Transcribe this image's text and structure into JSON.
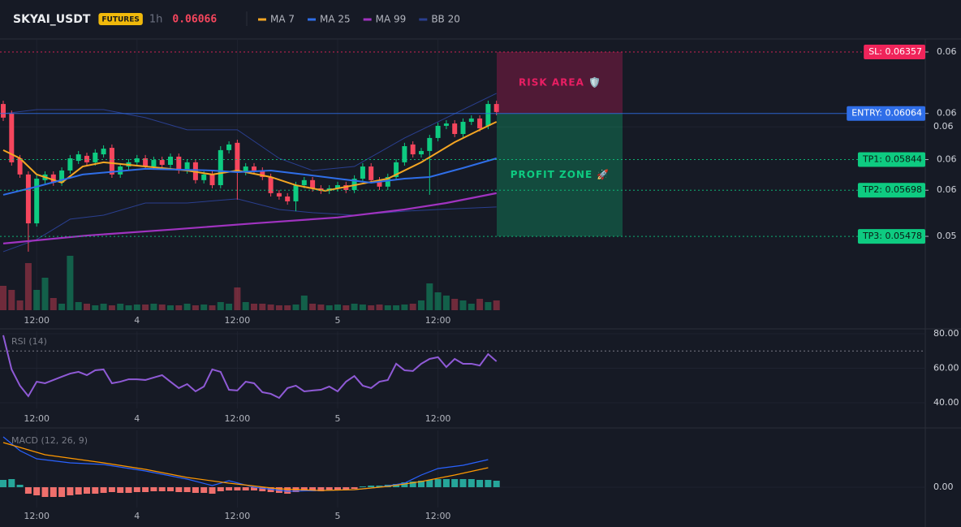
{
  "chart_data": [
    {
      "type": "candlestick",
      "title": "SKYAI_USDT",
      "badge": "FUTURES",
      "interval": "1h",
      "last_price": 0.06066,
      "last_price_color": "#f6465d",
      "categories": [
        null,
        null,
        null,
        null,
        "12:00",
        null,
        null,
        null,
        null,
        null,
        null,
        null,
        null,
        null,
        null,
        null,
        "4",
        null,
        null,
        null,
        null,
        null,
        null,
        null,
        null,
        null,
        null,
        null,
        "12:00",
        null,
        null,
        null,
        null,
        null,
        null,
        null,
        null,
        null,
        null,
        null,
        "5",
        null,
        null,
        null,
        null,
        null,
        null,
        null,
        null,
        null,
        null,
        null,
        "12:00",
        null,
        null,
        null,
        null,
        null,
        null,
        null
      ],
      "open": [
        0.06109,
        0.06063,
        0.0585,
        0.05773,
        0.0554,
        0.05746,
        0.05773,
        0.05734,
        0.05792,
        0.05838,
        0.05862,
        0.05831,
        0.05869,
        0.059,
        0.05773,
        0.05811,
        0.05831,
        0.0585,
        0.05811,
        0.05842,
        0.05819,
        0.05858,
        0.05792,
        0.05831,
        0.05746,
        0.05773,
        0.05722,
        0.05889,
        0.05924,
        0.05784,
        0.05811,
        0.05792,
        0.05761,
        0.05684,
        0.05668,
        0.05645,
        0.05722,
        0.05746,
        0.05707,
        0.05695,
        0.05707,
        0.05722,
        0.05699,
        0.05753,
        0.05811,
        0.05746,
        0.05715,
        0.05761,
        0.05831,
        0.05916,
        0.05869,
        0.05885,
        0.05947,
        0.06005,
        0.06016,
        0.05966,
        0.06024,
        0.0604,
        0.06005,
        0.06109
      ],
      "high": [
        0.06125,
        0.06078,
        0.05866,
        0.05788,
        0.05769,
        0.05788,
        0.05788,
        0.05807,
        0.05866,
        0.05885,
        0.05877,
        0.05893,
        0.05912,
        0.05916,
        0.05827,
        0.05846,
        0.05866,
        0.05866,
        0.05858,
        0.05858,
        0.05873,
        0.05873,
        0.05846,
        0.05846,
        0.05788,
        0.05788,
        0.05908,
        0.05931,
        0.05939,
        0.05827,
        0.05827,
        0.05807,
        0.05777,
        0.05699,
        0.05684,
        0.05738,
        0.05761,
        0.05761,
        0.05722,
        0.05722,
        0.05738,
        0.05738,
        0.05769,
        0.05827,
        0.05827,
        0.05761,
        0.05777,
        0.05846,
        0.05924,
        0.05931,
        0.059,
        0.05962,
        0.0602,
        0.06032,
        0.06032,
        0.0604,
        0.06055,
        0.06055,
        0.06125,
        0.06125
      ],
      "low": [
        0.06028,
        0.05815,
        0.05757,
        0.05405,
        0.05525,
        0.0573,
        0.05719,
        0.05719,
        0.05777,
        0.05823,
        0.05815,
        0.05815,
        0.05854,
        0.05757,
        0.05757,
        0.05796,
        0.05815,
        0.05796,
        0.05796,
        0.05804,
        0.05804,
        0.05777,
        0.05777,
        0.0573,
        0.0573,
        0.05707,
        0.05707,
        0.05873,
        0.05653,
        0.05769,
        0.05777,
        0.05746,
        0.05668,
        0.05653,
        0.05629,
        0.05598,
        0.05707,
        0.05691,
        0.0568,
        0.0568,
        0.05691,
        0.05684,
        0.05684,
        0.05738,
        0.0573,
        0.05699,
        0.05699,
        0.05746,
        0.05815,
        0.05854,
        0.05854,
        0.05676,
        0.05931,
        0.05989,
        0.05951,
        0.05951,
        0.06009,
        0.05978,
        0.05989,
        0.06055
      ],
      "close": [
        0.06044,
        0.05831,
        0.05773,
        0.0554,
        0.05753,
        0.05773,
        0.05734,
        0.05792,
        0.0585,
        0.05869,
        0.05831,
        0.05877,
        0.05896,
        0.05773,
        0.05811,
        0.05831,
        0.0585,
        0.05811,
        0.05842,
        0.05819,
        0.05858,
        0.05792,
        0.05831,
        0.05746,
        0.05773,
        0.05722,
        0.05889,
        0.05916,
        0.05784,
        0.05811,
        0.05792,
        0.05761,
        0.05684,
        0.05668,
        0.05645,
        0.05722,
        0.05746,
        0.05707,
        0.05695,
        0.05707,
        0.05722,
        0.05699,
        0.05753,
        0.05811,
        0.05746,
        0.05715,
        0.05761,
        0.05831,
        0.05908,
        0.05869,
        0.05885,
        0.05947,
        0.06005,
        0.06016,
        0.05966,
        0.06024,
        0.0604,
        0.05993,
        0.06109,
        0.06071
      ],
      "up_color": "#0ecb81",
      "down_color": "#f6465d",
      "ylim": [
        0.05126,
        0.06419
      ],
      "yticks": [
        0.06
      ],
      "volume": {
        "values": [
          30,
          25,
          12,
          58,
          25,
          40,
          15,
          8,
          67,
          10,
          8,
          6,
          8,
          6,
          8,
          6,
          7,
          7,
          8,
          7,
          6,
          6,
          8,
          6,
          7,
          6,
          10,
          8,
          28,
          10,
          8,
          8,
          7,
          6,
          6,
          7,
          18,
          8,
          7,
          6,
          7,
          6,
          8,
          7,
          6,
          7,
          6,
          6,
          7,
          8,
          12,
          33,
          22,
          18,
          14,
          12,
          8,
          14,
          10,
          12
        ],
        "ylim": [
          0,
          100
        ]
      },
      "lines": [
        {
          "name": "MA 7",
          "color": "#f5a623",
          "x": [
            0,
            2,
            4,
            7,
            9.5,
            12,
            17,
            22,
            25,
            28,
            32,
            35,
            38.5,
            42,
            46,
            50,
            54,
            57,
            59
          ],
          "values": [
            0.05889,
            0.0585,
            0.05773,
            0.05734,
            0.05811,
            0.05831,
            0.05811,
            0.05792,
            0.05773,
            0.05792,
            0.05761,
            0.05722,
            0.05695,
            0.05722,
            0.05753,
            0.05831,
            0.05927,
            0.05986,
            0.06024
          ]
        },
        {
          "name": "MA 25",
          "color": "#2f6ee8",
          "x": [
            0,
            4,
            9.5,
            17,
            25,
            28,
            32,
            36,
            40,
            44,
            48,
            51,
            55,
            59
          ],
          "values": [
            0.05676,
            0.05715,
            0.05773,
            0.058,
            0.05792,
            0.05784,
            0.05792,
            0.05773,
            0.05753,
            0.05734,
            0.05753,
            0.05761,
            0.05804,
            0.0585
          ]
        },
        {
          "name": "MA 99",
          "color": "#a033c0",
          "x": [
            0,
            10,
            20,
            30,
            40,
            48,
            53,
            59
          ],
          "values": [
            0.05444,
            0.05482,
            0.0551,
            0.0554,
            0.05568,
            0.05606,
            0.05637,
            0.05684
          ]
        }
      ],
      "bands": {
        "name": "BB 20",
        "color": "#2a3f8f",
        "x": [
          0,
          4,
          8,
          12,
          17,
          22,
          28,
          33,
          37,
          42,
          48,
          52,
          59
        ],
        "upper": [
          0.06063,
          0.06082,
          0.06082,
          0.06082,
          0.06044,
          0.05986,
          0.05986,
          0.0585,
          0.05792,
          0.05811,
          0.05947,
          0.06024,
          0.0616
        ],
        "lower": [
          0.05405,
          0.05463,
          0.0556,
          0.05579,
          0.05637,
          0.05637,
          0.05657,
          0.05606,
          0.05591,
          0.05579,
          0.05598,
          0.05606,
          0.05618
        ]
      },
      "levels": [
        {
          "label": "SL: 0.06357",
          "value": 0.06357,
          "axis_label": "0.06",
          "color": "#f0245a",
          "text_color": "#ffffff",
          "style": "dotted"
        },
        {
          "label": "ENTRY: 0.06064",
          "value": 0.06064,
          "axis_label": "0.06",
          "color": "#2f6ee8",
          "text_color": "#ffffff",
          "style": "solid"
        },
        {
          "label": "TP1: 0.05844",
          "value": 0.05844,
          "axis_label": "0.06",
          "color": "#0ecb81",
          "text_color": "#0b1a14",
          "style": "dotted"
        },
        {
          "label": "TP2: 0.05698",
          "value": 0.05698,
          "axis_label": "0.06",
          "color": "#0ecb81",
          "text_color": "#0b1a14",
          "style": "dotted"
        },
        {
          "label": "TP3: 0.05478",
          "value": 0.05478,
          "axis_label": "0.05",
          "color": "#0ecb81",
          "text_color": "#0b1a14",
          "style": "dotted"
        }
      ],
      "zones": [
        {
          "label": "RISK AREA 🛡️",
          "from": 0.06357,
          "to": 0.06064,
          "color": "#e91e63"
        },
        {
          "label": "PROFIT ZONE 🚀",
          "from": 0.06064,
          "to": 0.05478,
          "color": "#0ecb81"
        }
      ]
    },
    {
      "type": "line",
      "title": "RSI (14)",
      "color": "#8f5ad6",
      "values": [
        79.1,
        59.3,
        49.9,
        43.8,
        52.2,
        51.3,
        53.2,
        55.1,
        56.9,
        57.9,
        56.0,
        58.8,
        59.3,
        51.3,
        52.2,
        53.6,
        53.6,
        53.2,
        54.6,
        56.0,
        52.2,
        48.5,
        50.8,
        46.6,
        49.4,
        59.3,
        57.9,
        47.5,
        47.1,
        52.2,
        51.3,
        46.1,
        45.2,
        42.8,
        48.5,
        49.9,
        46.6,
        47.1,
        47.5,
        49.4,
        46.6,
        52.2,
        55.5,
        49.9,
        48.5,
        52.2,
        53.2,
        62.6,
        58.8,
        58.4,
        62.6,
        65.4,
        66.4,
        60.7,
        65.4,
        62.6,
        62.6,
        61.6,
        68.2,
        64.0
      ],
      "levels": [
        70
      ],
      "ylim": [
        36.7,
        81.4
      ],
      "yticks": [
        {
          "value": 80,
          "label": "80.00"
        },
        {
          "value": 60,
          "label": "60.00"
        },
        {
          "value": 40,
          "label": "40.00"
        }
      ]
    },
    {
      "type": "macd",
      "title": "MACD (12, 26, 9)",
      "histogram": [
        9e-05,
        0.0001,
        3e-05,
        -8e-05,
        -0.0001,
        -0.00012,
        -0.00012,
        -0.00012,
        -0.0001,
        -9e-05,
        -8e-05,
        -8e-05,
        -7e-05,
        -6e-05,
        -7e-05,
        -7e-05,
        -6e-05,
        -6e-05,
        -5e-05,
        -5e-05,
        -5e-05,
        -6e-05,
        -6e-05,
        -7e-05,
        -7e-05,
        -8e-05,
        -5e-05,
        -4e-05,
        -4e-05,
        -4e-05,
        -4e-05,
        -5e-05,
        -6e-05,
        -7e-05,
        -8e-05,
        -6e-05,
        -5e-05,
        -5e-05,
        -5e-05,
        -4e-05,
        -4e-05,
        -3e-05,
        -2e-05,
        1e-05,
        2e-05,
        2e-05,
        3e-05,
        4e-05,
        6e-05,
        7e-05,
        8e-05,
        9e-05,
        0.0001,
        0.0001,
        0.0001,
        0.0001,
        0.0001,
        9e-05,
        9e-05,
        8e-05
      ],
      "positive_color": "#26a69a",
      "negative_color": "#ef6f6c",
      "series": [
        {
          "color": "#2962ff",
          "x": [
            0,
            2,
            4,
            8,
            12,
            17,
            22,
            25,
            27,
            30,
            34,
            38,
            42,
            45,
            48,
            50,
            52,
            55,
            58
          ],
          "values": [
            0.00062,
            0.00045,
            0.00035,
            0.0003,
            0.00028,
            0.0002,
            0.0001,
            2e-05,
            8e-05,
            0,
            -5e-05,
            -4e-05,
            -3e-05,
            0,
            5e-05,
            0.00015,
            0.00023,
            0.00027,
            0.00034
          ]
        },
        {
          "color": "#ff9800",
          "x": [
            0,
            5,
            12,
            17,
            22,
            27,
            33,
            38,
            42,
            46,
            50,
            54,
            58
          ],
          "values": [
            0.00055,
            0.0004,
            0.0003,
            0.00022,
            0.00012,
            5e-05,
            -2e-05,
            -4e-05,
            -3e-05,
            1e-05,
            7e-05,
            0.00015,
            0.00024
          ]
        }
      ],
      "ylim": [
        -0.00025,
        0.0007
      ],
      "yticks": [
        {
          "value": 0,
          "label": "0.00"
        }
      ]
    }
  ]
}
